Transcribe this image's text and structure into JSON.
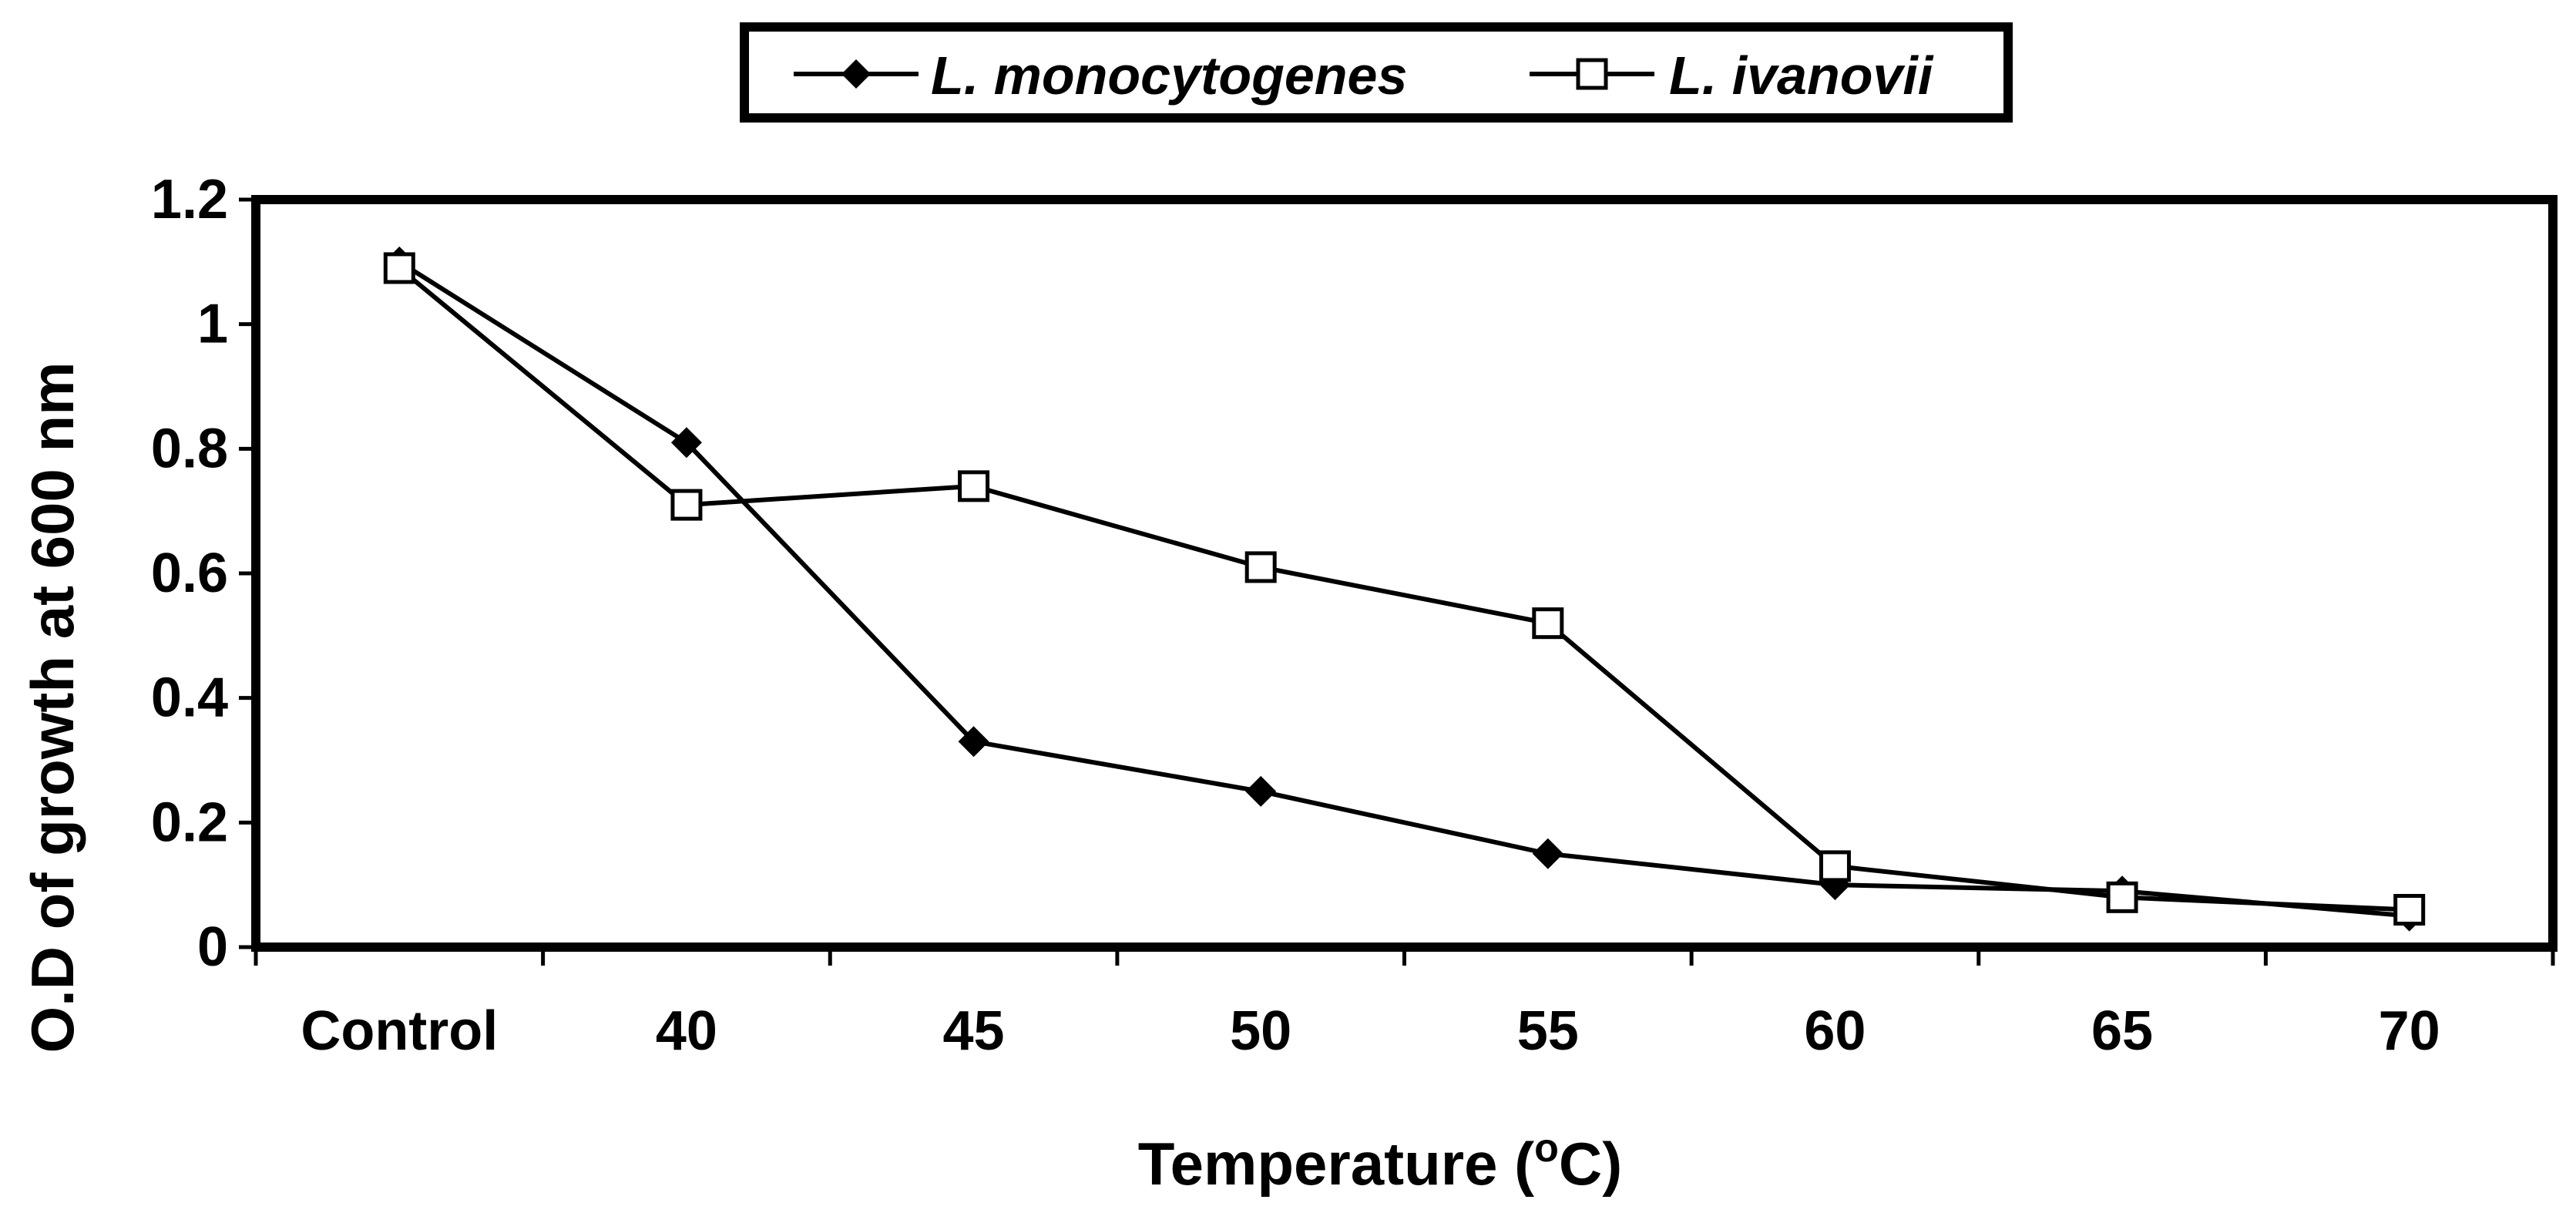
{
  "chart_data": {
    "type": "line",
    "title": "",
    "xlabel": "Temperature",
    "xlabel_unit_prefix": "(",
    "xlabel_unit_sup": "o",
    "xlabel_unit_suffix": "C)",
    "ylabel": "O.D of growth at 600 nm",
    "categories": [
      "Control",
      "40",
      "45",
      "50",
      "55",
      "60",
      "65",
      "70"
    ],
    "ylim": [
      0,
      1.2
    ],
    "yticks": [
      "0",
      "0.2",
      "0.4",
      "0.6",
      "0.8",
      "1",
      "1.2"
    ],
    "grid": false,
    "legend_position": "top-center",
    "series": [
      {
        "name": "L. monocytogenes",
        "marker": "filled-diamond",
        "color": "#000000",
        "values": [
          1.1,
          0.81,
          0.33,
          0.25,
          0.15,
          0.1,
          0.09,
          0.05
        ]
      },
      {
        "name": "L. ivanovii",
        "marker": "open-square",
        "color": "#000000",
        "values": [
          1.09,
          0.71,
          0.74,
          0.61,
          0.52,
          0.13,
          0.08,
          0.06
        ]
      }
    ]
  }
}
